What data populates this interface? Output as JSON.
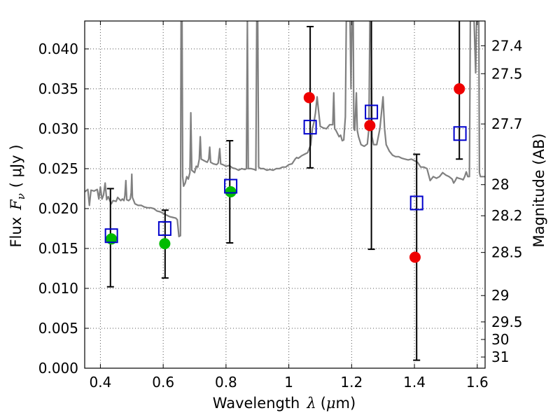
{
  "chart_data": {
    "type": "scatter",
    "title": "",
    "xlabel": {
      "prefix": "Wavelength",
      "symbol": "λ",
      "unit_open": "(",
      "unit_mu": "μ",
      "unit_rest": "m)"
    },
    "ylabel": {
      "prefix": "Flux",
      "symbol": "F",
      "subscript": "ν",
      "unit": "( μJy )"
    },
    "y2label": "Magnitude (AB)",
    "xlim": [
      0.35,
      1.625
    ],
    "ylim": [
      0.0,
      0.0435
    ],
    "grid": true,
    "x_ticks": [
      {
        "value": 0.4,
        "label": "0.4"
      },
      {
        "value": 0.6,
        "label": "0.6"
      },
      {
        "value": 0.8,
        "label": "0.8"
      },
      {
        "value": 1.0,
        "label": "1"
      },
      {
        "value": 1.2,
        "label": "1.2"
      },
      {
        "value": 1.4,
        "label": "1.4"
      },
      {
        "value": 1.6,
        "label": "1.6"
      }
    ],
    "y_ticks": [
      {
        "value": 0.0,
        "label": "0.000"
      },
      {
        "value": 0.005,
        "label": "0.005"
      },
      {
        "value": 0.01,
        "label": "0.010"
      },
      {
        "value": 0.015,
        "label": "0.015"
      },
      {
        "value": 0.02,
        "label": "0.020"
      },
      {
        "value": 0.025,
        "label": "0.025"
      },
      {
        "value": 0.03,
        "label": "0.030"
      },
      {
        "value": 0.035,
        "label": "0.035"
      },
      {
        "value": 0.04,
        "label": "0.040"
      }
    ],
    "y2_ticks": [
      {
        "flux": 0.0404,
        "label": "27.4"
      },
      {
        "flux": 0.0369,
        "label": "27.5"
      },
      {
        "flux": 0.0306,
        "label": "27.7"
      },
      {
        "flux": 0.023,
        "label": "28"
      },
      {
        "flux": 0.0191,
        "label": "28.2"
      },
      {
        "flux": 0.0145,
        "label": "28.5"
      },
      {
        "flux": 0.0091,
        "label": "29"
      },
      {
        "flux": 0.0058,
        "label": "29.5"
      },
      {
        "flux": 0.0036,
        "label": "30"
      },
      {
        "flux": 0.0014,
        "label": "31"
      }
    ],
    "colors": {
      "spectrum": "#808080",
      "green": "#00bb00",
      "red": "#ee0000",
      "square": "#0000cc",
      "errorbar": "#000000",
      "grid": "#555555"
    },
    "spectrum": [
      [
        0.35,
        0.0221
      ],
      [
        0.36,
        0.0224
      ],
      [
        0.365,
        0.0204
      ],
      [
        0.37,
        0.0223
      ],
      [
        0.38,
        0.0222
      ],
      [
        0.39,
        0.0224
      ],
      [
        0.395,
        0.0212
      ],
      [
        0.4,
        0.0227
      ],
      [
        0.405,
        0.0212
      ],
      [
        0.41,
        0.0217
      ],
      [
        0.415,
        0.0232
      ],
      [
        0.42,
        0.0211
      ],
      [
        0.425,
        0.0215
      ],
      [
        0.43,
        0.021
      ],
      [
        0.435,
        0.0206
      ],
      [
        0.44,
        0.021
      ],
      [
        0.45,
        0.0209
      ],
      [
        0.455,
        0.0214
      ],
      [
        0.46,
        0.0212
      ],
      [
        0.465,
        0.021
      ],
      [
        0.47,
        0.0212
      ],
      [
        0.475,
        0.021
      ],
      [
        0.478,
        0.0216
      ],
      [
        0.481,
        0.0235
      ],
      [
        0.484,
        0.0211
      ],
      [
        0.49,
        0.021
      ],
      [
        0.495,
        0.0212
      ],
      [
        0.498,
        0.022
      ],
      [
        0.5,
        0.0243
      ],
      [
        0.502,
        0.0214
      ],
      [
        0.51,
        0.0206
      ],
      [
        0.52,
        0.0204
      ],
      [
        0.53,
        0.0204
      ],
      [
        0.54,
        0.0202
      ],
      [
        0.55,
        0.0201
      ],
      [
        0.56,
        0.0201
      ],
      [
        0.57,
        0.02
      ],
      [
        0.58,
        0.0197
      ],
      [
        0.59,
        0.0196
      ],
      [
        0.6,
        0.0194
      ],
      [
        0.61,
        0.0192
      ],
      [
        0.62,
        0.019
      ],
      [
        0.63,
        0.0189
      ],
      [
        0.64,
        0.0188
      ],
      [
        0.645,
        0.0186
      ],
      [
        0.65,
        0.0165
      ],
      [
        0.655,
        0.0166
      ],
      [
        0.657,
        0.0435
      ],
      [
        0.66,
        0.0435
      ],
      [
        0.662,
        0.024
      ],
      [
        0.665,
        0.0228
      ],
      [
        0.67,
        0.0232
      ],
      [
        0.675,
        0.024
      ],
      [
        0.68,
        0.0237
      ],
      [
        0.685,
        0.0245
      ],
      [
        0.688,
        0.032
      ],
      [
        0.691,
        0.0248
      ],
      [
        0.7,
        0.0245
      ],
      [
        0.705,
        0.0253
      ],
      [
        0.71,
        0.0252
      ],
      [
        0.715,
        0.0262
      ],
      [
        0.718,
        0.029
      ],
      [
        0.721,
        0.0262
      ],
      [
        0.73,
        0.026
      ],
      [
        0.74,
        0.0258
      ],
      [
        0.745,
        0.0262
      ],
      [
        0.748,
        0.0277
      ],
      [
        0.751,
        0.0258
      ],
      [
        0.76,
        0.0256
      ],
      [
        0.77,
        0.0255
      ],
      [
        0.775,
        0.0257
      ],
      [
        0.78,
        0.0275
      ],
      [
        0.783,
        0.0256
      ],
      [
        0.79,
        0.0255
      ],
      [
        0.8,
        0.0253
      ],
      [
        0.81,
        0.0254
      ],
      [
        0.82,
        0.0251
      ],
      [
        0.83,
        0.025
      ],
      [
        0.84,
        0.0248
      ],
      [
        0.85,
        0.025
      ],
      [
        0.86,
        0.0249
      ],
      [
        0.865,
        0.025
      ],
      [
        0.868,
        0.0435
      ],
      [
        0.871,
        0.025
      ],
      [
        0.88,
        0.025
      ],
      [
        0.89,
        0.0249
      ],
      [
        0.895,
        0.0248
      ],
      [
        0.898,
        0.0435
      ],
      [
        0.901,
        0.0435
      ],
      [
        0.904,
        0.0252
      ],
      [
        0.91,
        0.025
      ],
      [
        0.92,
        0.025
      ],
      [
        0.93,
        0.0248
      ],
      [
        0.94,
        0.0249
      ],
      [
        0.95,
        0.0248
      ],
      [
        0.96,
        0.025
      ],
      [
        0.97,
        0.025
      ],
      [
        0.98,
        0.0252
      ],
      [
        0.99,
        0.0252
      ],
      [
        1.0,
        0.0255
      ],
      [
        1.01,
        0.0256
      ],
      [
        1.02,
        0.0262
      ],
      [
        1.025,
        0.0264
      ],
      [
        1.03,
        0.0263
      ],
      [
        1.04,
        0.0266
      ],
      [
        1.05,
        0.0268
      ],
      [
        1.06,
        0.027
      ],
      [
        1.07,
        0.028
      ],
      [
        1.075,
        0.03
      ],
      [
        1.08,
        0.0308
      ],
      [
        1.085,
        0.032
      ],
      [
        1.09,
        0.034
      ],
      [
        1.094,
        0.0325
      ],
      [
        1.1,
        0.0303
      ],
      [
        1.11,
        0.0301
      ],
      [
        1.12,
        0.03
      ],
      [
        1.13,
        0.0305
      ],
      [
        1.14,
        0.0305
      ],
      [
        1.143,
        0.0345
      ],
      [
        1.146,
        0.03
      ],
      [
        1.15,
        0.0298
      ],
      [
        1.16,
        0.029
      ],
      [
        1.165,
        0.0292
      ],
      [
        1.17,
        0.0285
      ],
      [
        1.175,
        0.0286
      ],
      [
        1.18,
        0.0315
      ],
      [
        1.183,
        0.0435
      ],
      [
        1.195,
        0.0435
      ],
      [
        1.198,
        0.035
      ],
      [
        1.201,
        0.0435
      ],
      [
        1.205,
        0.0435
      ],
      [
        1.207,
        0.03
      ],
      [
        1.21,
        0.0298
      ],
      [
        1.215,
        0.0345
      ],
      [
        1.218,
        0.0298
      ],
      [
        1.222,
        0.029
      ],
      [
        1.23,
        0.028
      ],
      [
        1.24,
        0.0278
      ],
      [
        1.25,
        0.0281
      ],
      [
        1.255,
        0.03
      ],
      [
        1.258,
        0.0435
      ],
      [
        1.262,
        0.0435
      ],
      [
        1.265,
        0.029
      ],
      [
        1.27,
        0.028
      ],
      [
        1.28,
        0.028
      ],
      [
        1.29,
        0.03
      ],
      [
        1.3,
        0.034
      ],
      [
        1.305,
        0.03
      ],
      [
        1.31,
        0.028
      ],
      [
        1.32,
        0.0272
      ],
      [
        1.33,
        0.0267
      ],
      [
        1.34,
        0.0265
      ],
      [
        1.35,
        0.0265
      ],
      [
        1.36,
        0.0263
      ],
      [
        1.37,
        0.0262
      ],
      [
        1.38,
        0.0261
      ],
      [
        1.39,
        0.0262
      ],
      [
        1.4,
        0.026
      ],
      [
        1.41,
        0.0258
      ],
      [
        1.42,
        0.0252
      ],
      [
        1.43,
        0.0252
      ],
      [
        1.44,
        0.025
      ],
      [
        1.45,
        0.0235
      ],
      [
        1.46,
        0.024
      ],
      [
        1.47,
        0.0238
      ],
      [
        1.48,
        0.024
      ],
      [
        1.49,
        0.0245
      ],
      [
        1.5,
        0.0242
      ],
      [
        1.51,
        0.024
      ],
      [
        1.52,
        0.0237
      ],
      [
        1.525,
        0.0232
      ],
      [
        1.53,
        0.0235
      ],
      [
        1.535,
        0.0239
      ],
      [
        1.54,
        0.0238
      ],
      [
        1.55,
        0.0237
      ],
      [
        1.555,
        0.0236
      ],
      [
        1.56,
        0.024
      ],
      [
        1.565,
        0.0246
      ],
      [
        1.57,
        0.024
      ],
      [
        1.575,
        0.024
      ],
      [
        1.578,
        0.0435
      ],
      [
        1.59,
        0.0435
      ],
      [
        1.595,
        0.037
      ],
      [
        1.598,
        0.0435
      ],
      [
        1.605,
        0.0435
      ],
      [
        1.607,
        0.0245
      ],
      [
        1.61,
        0.024
      ],
      [
        1.615,
        0.024
      ],
      [
        1.625,
        0.024
      ]
    ],
    "errorbars": [
      {
        "x": 0.432,
        "low": 0.0102,
        "high": 0.0225
      },
      {
        "x": 0.606,
        "low": 0.0113,
        "high": 0.0198
      },
      {
        "x": 0.812,
        "low": 0.0157,
        "high": 0.0285
      },
      {
        "x": 1.068,
        "low": 0.0251,
        "high": 0.0428
      },
      {
        "x": 1.263,
        "low": 0.0149,
        "high": 0.0435
      },
      {
        "x": 1.407,
        "low": 0.001,
        "high": 0.0268
      },
      {
        "x": 1.543,
        "low": 0.0262,
        "high": 0.0435
      }
    ],
    "green_points": [
      {
        "x": 0.435,
        "y": 0.0162
      },
      {
        "x": 0.605,
        "y": 0.0156
      },
      {
        "x": 0.815,
        "y": 0.0221
      }
    ],
    "red_points": [
      {
        "x": 1.065,
        "y": 0.0339
      },
      {
        "x": 1.258,
        "y": 0.0304
      },
      {
        "x": 1.402,
        "y": 0.0139
      },
      {
        "x": 1.543,
        "y": 0.035
      }
    ],
    "squares": [
      {
        "x": 0.435,
        "y": 0.0166
      },
      {
        "x": 0.605,
        "y": 0.0175
      },
      {
        "x": 0.815,
        "y": 0.0228
      },
      {
        "x": 1.068,
        "y": 0.0302
      },
      {
        "x": 1.263,
        "y": 0.0321
      },
      {
        "x": 1.407,
        "y": 0.0207
      },
      {
        "x": 1.545,
        "y": 0.0294
      }
    ]
  }
}
